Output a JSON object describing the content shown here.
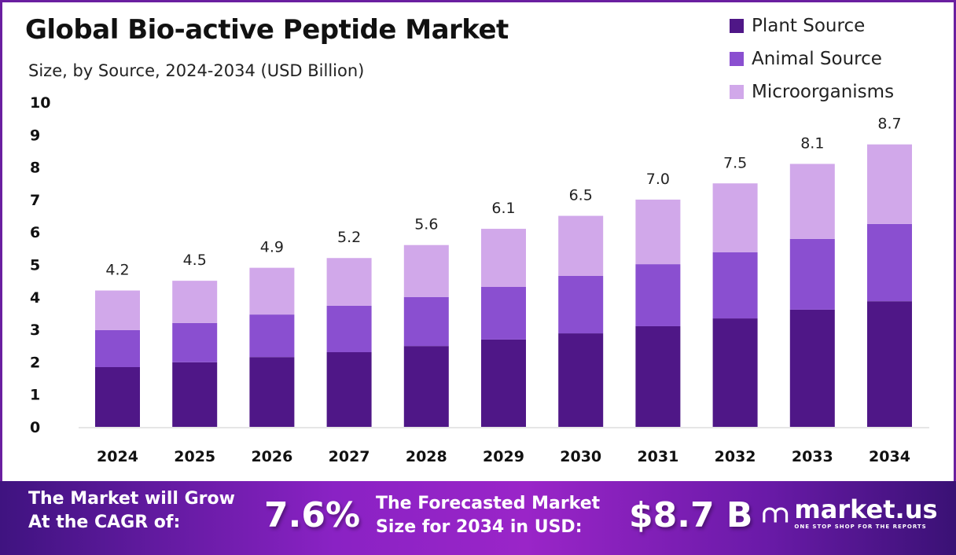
{
  "chart_data": {
    "type": "bar",
    "stacked": true,
    "title": "Global Bio-active Peptide Market",
    "subtitle": "Size, by Source, 2024-2034 (USD Billion)",
    "categories": [
      "2024",
      "2025",
      "2026",
      "2027",
      "2028",
      "2029",
      "2030",
      "2031",
      "2032",
      "2033",
      "2034"
    ],
    "series": [
      {
        "name": "Plant Source",
        "color": "#4f1787",
        "values": [
          1.84,
          1.99,
          2.15,
          2.3,
          2.49,
          2.69,
          2.88,
          3.1,
          3.34,
          3.61,
          3.87
        ]
      },
      {
        "name": "Animal Source",
        "color": "#8a4fd0",
        "values": [
          1.14,
          1.21,
          1.31,
          1.43,
          1.51,
          1.62,
          1.77,
          1.91,
          2.04,
          2.18,
          2.38
        ]
      },
      {
        "name": "Microorganisms",
        "color": "#d1a8ea",
        "values": [
          1.22,
          1.3,
          1.44,
          1.47,
          1.6,
          1.79,
          1.85,
          1.99,
          2.12,
          2.31,
          2.45
        ]
      }
    ],
    "totals": [
      "4.2",
      "4.5",
      "4.9",
      "5.2",
      "5.6",
      "6.1",
      "6.5",
      "7.0",
      "7.5",
      "8.1",
      "8.7"
    ],
    "yticks": [
      "0",
      "1",
      "2",
      "3",
      "4",
      "5",
      "6",
      "7",
      "8",
      "9",
      "10"
    ],
    "ylim": [
      0,
      10
    ],
    "grid": false,
    "legend": "top-right"
  },
  "footer": {
    "cagr_label_1": "The Market will Grow",
    "cagr_label_2": "At the CAGR of:",
    "cagr_value": "7.6%",
    "forecast_label_1": "The Forecasted Market",
    "forecast_label_2": "Size for 2034 in USD:",
    "forecast_value": "$8.7 B",
    "logo_name": "market.us",
    "logo_tagline": "ONE STOP SHOP FOR THE REPORTS"
  }
}
